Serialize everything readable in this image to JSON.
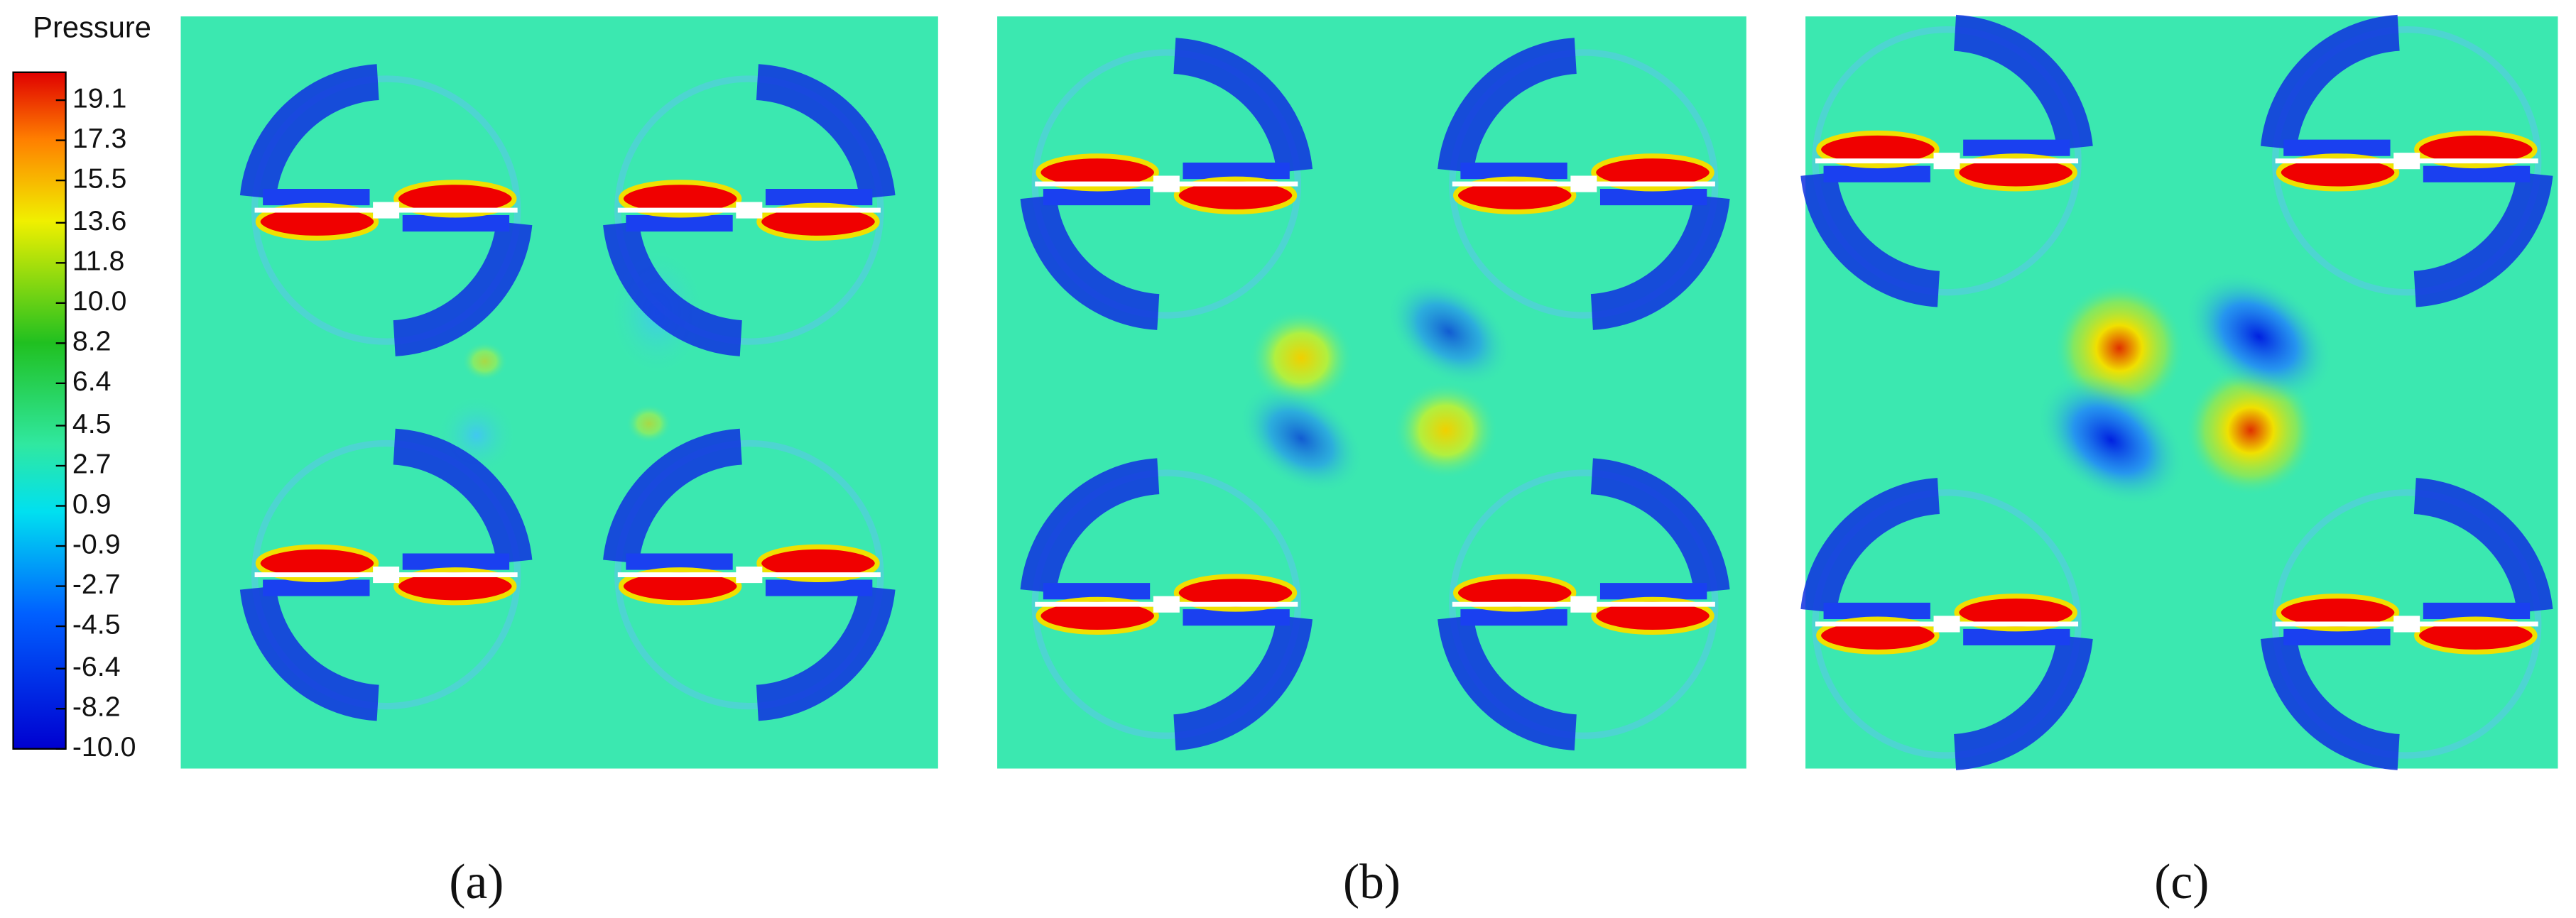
{
  "colorbar": {
    "title": "Pressure",
    "ticks": [
      19.1,
      17.3,
      15.5,
      13.6,
      11.8,
      {
        "value": 10,
        "label": "10.0"
      },
      8.2,
      6.4,
      4.5,
      2.7,
      0.9,
      -0.9,
      -2.7,
      -4.5,
      -6.4,
      -8.2,
      {
        "value": -10,
        "label": "-10.0"
      }
    ]
  },
  "panels": [
    {
      "label": "(a)"
    },
    {
      "label": "(b)"
    },
    {
      "label": "(c)"
    }
  ]
}
